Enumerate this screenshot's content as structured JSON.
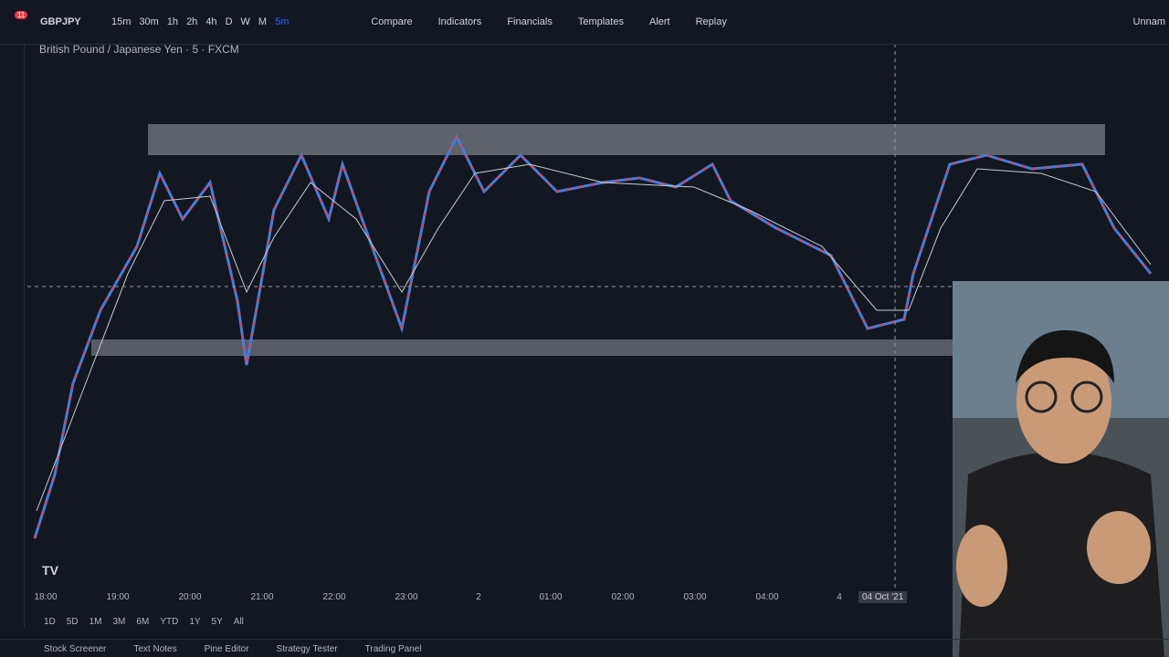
{
  "toolbar": {
    "symbol": "GBPJPY",
    "intervals": [
      "15m",
      "30m",
      "1h",
      "2h",
      "4h",
      "D",
      "W",
      "M",
      "5m"
    ],
    "buttons": [
      "Compare",
      "Indicators",
      "Financials",
      "Templates",
      "Alert",
      "Replay"
    ],
    "layout_name": "Unnam",
    "notifications": "11"
  },
  "chart": {
    "title": "British Pound / Japanese Yen · 5 · FXCM",
    "time_axis": [
      "18:00",
      "19:00",
      "20:00",
      "21:00",
      "22:00",
      "23:00",
      "2",
      "01:00",
      "02:00",
      "03:00",
      "04:00",
      "4"
    ],
    "crosshair_time": "04 Oct '21"
  },
  "ranges": [
    "1D",
    "5D",
    "1M",
    "3M",
    "6M",
    "YTD",
    "1Y",
    "5Y",
    "All"
  ],
  "bottom_tabs": [
    "Stock Screener",
    "Text Notes",
    "Pine Editor",
    "Strategy Tester",
    "Trading Panel"
  ]
}
